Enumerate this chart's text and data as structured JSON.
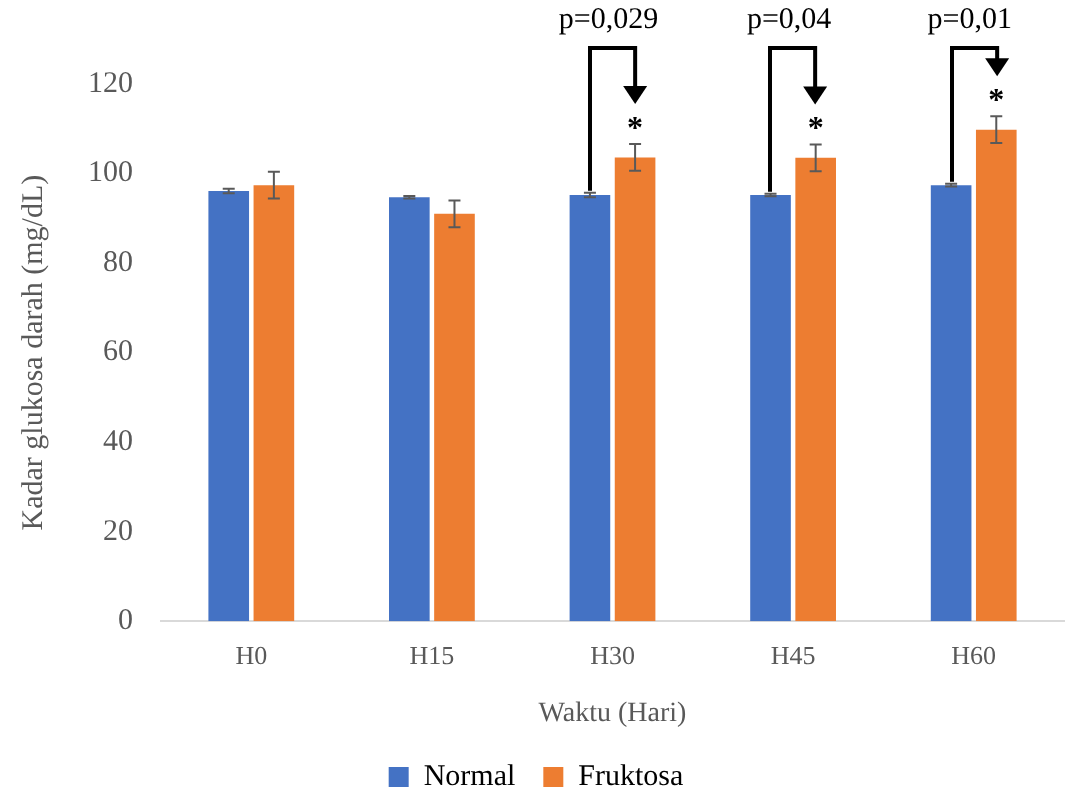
{
  "chart_data": {
    "type": "bar",
    "xlabel": "Waktu (Hari)",
    "ylabel": "Kadar glukosa darah (mg/dL)",
    "categories": [
      "H0",
      "H15",
      "H30",
      "H45",
      "H60"
    ],
    "series": [
      {
        "name": "Normal",
        "color": "#4472c4",
        "values": [
          96.1,
          94.7,
          95.2,
          95.2,
          97.4
        ],
        "errors": [
          0.5,
          0.3,
          0.5,
          0.3,
          0.3
        ]
      },
      {
        "name": "Fruktosa",
        "color": "#ed7d31",
        "values": [
          97.4,
          91,
          103.6,
          103.5,
          109.8
        ],
        "errors": [
          3,
          3,
          3,
          3,
          3
        ]
      }
    ],
    "ylim": [
      0,
      120
    ],
    "yticks": [
      0,
      20,
      40,
      60,
      80,
      100,
      120
    ],
    "grid": false,
    "legend": "bottom",
    "annotations": [
      "p=0,029",
      "p=0,04",
      "p=0,01",
      {
        "text": "*",
        "x": "H30",
        "y": 103.6
      },
      {
        "text": "*",
        "x": "H45",
        "y": 103.5
      },
      {
        "text": "*",
        "x": "H60",
        "y": 109.8
      }
    ]
  }
}
